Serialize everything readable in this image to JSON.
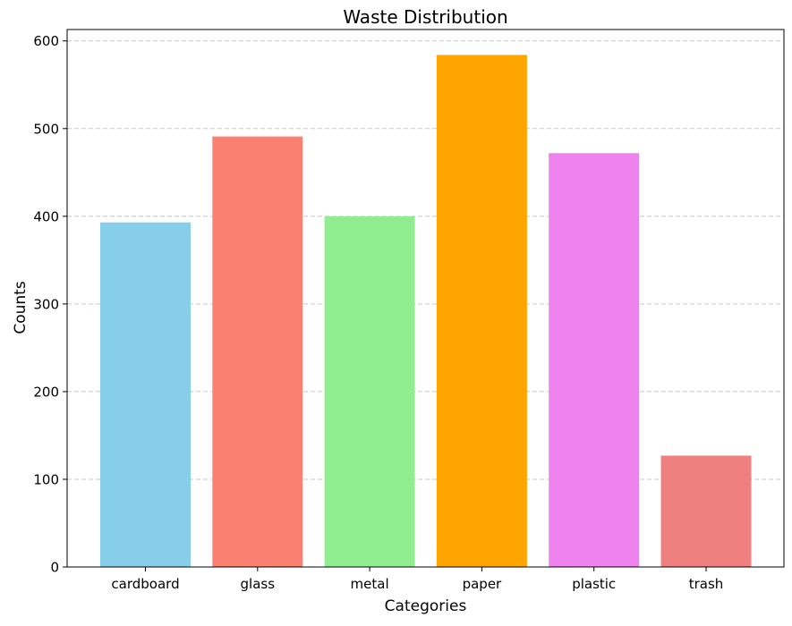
{
  "chart_data": {
    "type": "bar",
    "title": "Waste Distribution",
    "xlabel": "Categories",
    "ylabel": "Counts",
    "categories": [
      "cardboard",
      "glass",
      "metal",
      "paper",
      "plastic",
      "trash"
    ],
    "values": [
      393,
      491,
      400,
      584,
      472,
      127
    ],
    "colors": [
      "#87ceeb",
      "#fa8072",
      "#90ee90",
      "#ffa500",
      "#ee82ee",
      "#f08080"
    ],
    "ylim": [
      0,
      613
    ],
    "yticks": [
      0,
      100,
      200,
      300,
      400,
      500,
      600
    ],
    "grid": {
      "axis": "y",
      "style": "dashed",
      "color": "#c8c8c8"
    }
  }
}
